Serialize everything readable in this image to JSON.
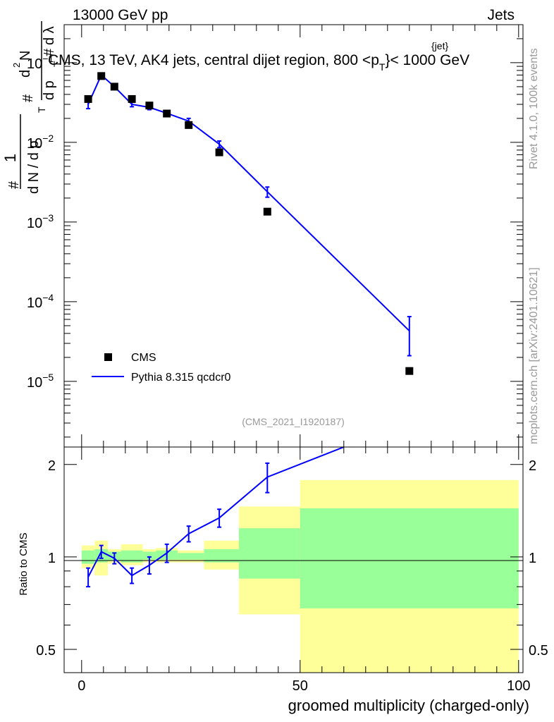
{
  "header": {
    "left": "13000 GeV pp",
    "right": "Jets"
  },
  "side_labels": {
    "rivet": "Rivet 4.1.0,  100k events",
    "source": "mcplots.cern.ch [arXiv:2401.10621]"
  },
  "chart_data": [
    {
      "type": "scatter",
      "title": "CMS, 13 TeV, AK4 jets, central dijet region, 800 <p_T^{jet}< 1000 GeV",
      "title_parts": {
        "prefix": "CMS, 13 TeV, AK4 jets, central dijet region, 800 <p",
        "sup": "{jet}",
        "sub": "T",
        "suffix": "}< 1000 GeV"
      },
      "ylabel": "1/(dN/dp_T) d²N/(dp_T dλ)",
      "ylabel_parts": {
        "hash1": "#",
        "one": "1",
        "dN": "d N / d p",
        "T": "T",
        "hash2": "#",
        "top": "d",
        "sup2": "2",
        "N": "N",
        "dp": "d p",
        "T2": "T",
        "hash3": "#",
        "dlambda": "d λ"
      },
      "yscale": "log",
      "ylim": [
        1.5e-06,
        0.3
      ],
      "xlim": [
        -4,
        101
      ],
      "yticks": [
        {
          "value": 0.1,
          "base": "10",
          "exp": "−1"
        },
        {
          "value": 0.01,
          "base": "10",
          "exp": "−2"
        },
        {
          "value": 0.001,
          "base": "10",
          "exp": "−3"
        },
        {
          "value": 0.0001,
          "base": "10",
          "exp": "−4"
        },
        {
          "value": 1e-05,
          "base": "10",
          "exp": "−5"
        }
      ],
      "watermark": "(CMS_2021_I1920187)",
      "legend": [
        {
          "label": "CMS",
          "marker": "square",
          "color": "#000000"
        },
        {
          "label": "Pythia 8.315 qcdcr0",
          "marker": "line",
          "color": "#0000ff"
        }
      ],
      "series": [
        {
          "name": "CMS",
          "x": [
            1.5,
            4.5,
            7.5,
            11.5,
            15.5,
            19.5,
            24.5,
            31.5,
            42.5,
            75.0
          ],
          "y": [
            0.035,
            0.068,
            0.05,
            0.035,
            0.029,
            0.023,
            0.0165,
            0.0075,
            0.00135,
            1.35e-05
          ]
        },
        {
          "name": "Pythia 8.315 qcdcr0",
          "x": [
            1.5,
            4.5,
            7.5,
            11.5,
            15.5,
            19.5,
            24.5,
            31.5,
            42.5,
            75.0
          ],
          "y": [
            0.03,
            0.07,
            0.05,
            0.03,
            0.0275,
            0.0232,
            0.0185,
            0.0095,
            0.0024,
            4.3e-05
          ],
          "yerr_low": [
            0.0035,
            0.004,
            0.003,
            0.002,
            0.0018,
            0.0014,
            0.0015,
            0.0009,
            0.00035,
            2.2e-05
          ],
          "yerr_high": [
            0.0035,
            0.004,
            0.003,
            0.002,
            0.0018,
            0.0014,
            0.0015,
            0.0009,
            0.00035,
            2.2e-05
          ]
        }
      ]
    },
    {
      "type": "line",
      "ylabel": "Ratio to CMS",
      "xlabel": "groomed multiplicity (charged-only)",
      "yscale": "log",
      "ylim": [
        0.42,
        2.28
      ],
      "xlim": [
        -4,
        101
      ],
      "yticks": [
        0.5,
        1,
        2
      ],
      "ytick_labels": [
        "0.5",
        "1",
        "2"
      ],
      "xticks": [
        0,
        50,
        100
      ],
      "xtick_labels": [
        "0",
        "50",
        "100"
      ],
      "reference_line": 1.0,
      "uncertainty_bands": [
        {
          "x_low": 0,
          "x_high": 3,
          "inner": [
            0.95,
            1.05
          ],
          "outer": [
            0.92,
            1.09
          ]
        },
        {
          "x_low": 3,
          "x_high": 6,
          "inner": [
            0.96,
            1.06
          ],
          "outer": [
            0.87,
            1.13
          ]
        },
        {
          "x_low": 6,
          "x_high": 9,
          "inner": [
            0.97,
            1.04
          ],
          "outer": [
            0.95,
            1.06
          ]
        },
        {
          "x_low": 9,
          "x_high": 14,
          "inner": [
            0.96,
            1.05
          ],
          "outer": [
            0.94,
            1.1
          ]
        },
        {
          "x_low": 14,
          "x_high": 17,
          "inner": [
            0.98,
            1.04
          ],
          "outer": [
            0.96,
            1.06
          ]
        },
        {
          "x_low": 17,
          "x_high": 22,
          "inner": [
            0.98,
            1.05
          ],
          "outer": [
            0.96,
            1.07
          ]
        },
        {
          "x_low": 22,
          "x_high": 28,
          "inner": [
            0.98,
            1.03
          ],
          "outer": [
            0.96,
            1.05
          ]
        },
        {
          "x_low": 28,
          "x_high": 36,
          "inner": [
            0.96,
            1.06
          ],
          "outer": [
            0.91,
            1.13
          ]
        },
        {
          "x_low": 36,
          "x_high": 50,
          "inner": [
            0.85,
            1.24
          ],
          "outer": [
            0.65,
            1.46
          ]
        },
        {
          "x_low": 50,
          "x_high": 100,
          "inner": [
            0.68,
            1.44
          ],
          "outer": [
            0.34,
            1.78
          ]
        }
      ],
      "series": [
        {
          "name": "Pythia 8.315 qcdcr0 / CMS",
          "x": [
            1.5,
            4.5,
            7.5,
            11.5,
            15.5,
            19.5,
            24.5,
            31.5,
            42.5,
            60.0
          ],
          "y": [
            0.86,
            1.04,
            0.99,
            0.87,
            0.94,
            1.03,
            1.19,
            1.34,
            1.82,
            2.28
          ],
          "yerr": [
            0.06,
            0.05,
            0.04,
            0.05,
            0.06,
            0.07,
            0.07,
            0.09,
            0.2,
            0
          ]
        }
      ]
    }
  ],
  "colors": {
    "data": "#000000",
    "mc": "#0000ff",
    "band_inner": "#99ff99",
    "band_outer": "#ffff99"
  }
}
